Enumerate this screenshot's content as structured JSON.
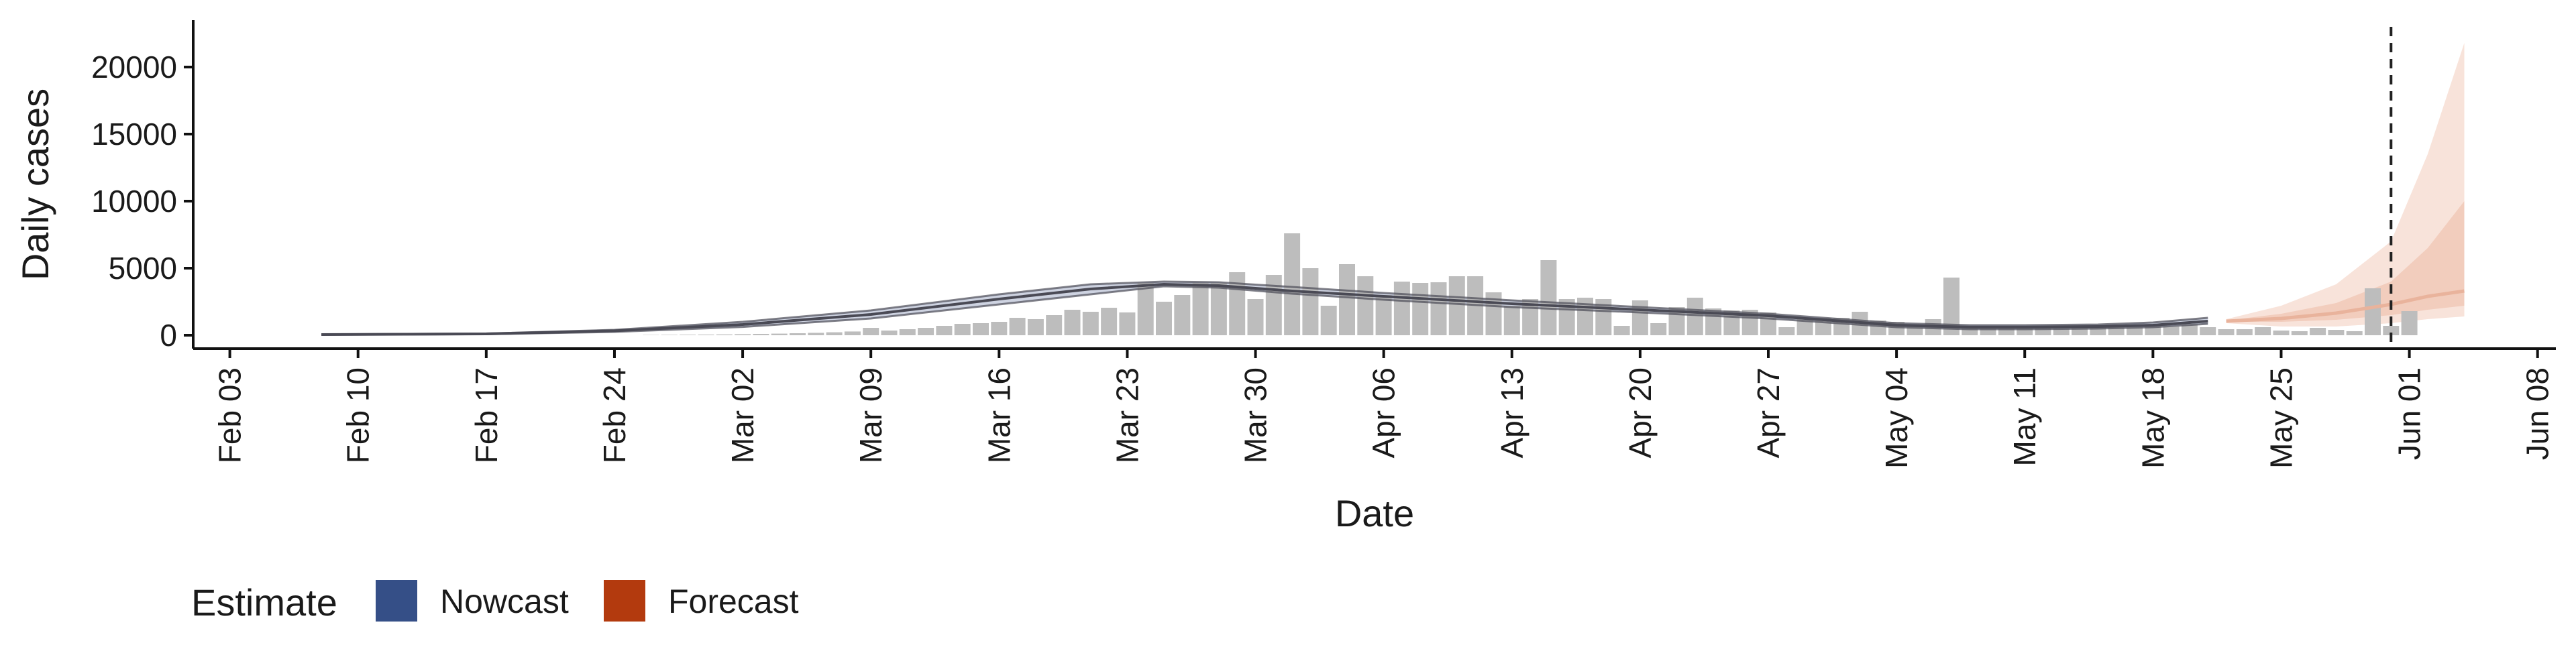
{
  "chart_data": {
    "type": "bar",
    "xlabel": "Date",
    "ylabel": "Daily cases",
    "x_range": [
      "2020-02-01",
      "2020-06-09"
    ],
    "ylim": [
      -1000,
      23500
    ],
    "y_ticks": [
      0,
      5000,
      10000,
      15000,
      20000
    ],
    "y_tick_labels": [
      "0",
      "5000",
      "10000",
      "15000",
      "20000"
    ],
    "x_ticks": [
      "2020-02-03",
      "2020-02-10",
      "2020-02-17",
      "2020-02-24",
      "2020-03-02",
      "2020-03-09",
      "2020-03-16",
      "2020-03-23",
      "2020-03-30",
      "2020-04-06",
      "2020-04-13",
      "2020-04-20",
      "2020-04-27",
      "2020-05-04",
      "2020-05-11",
      "2020-05-18",
      "2020-05-25",
      "2020-06-01",
      "2020-06-08"
    ],
    "x_tick_labels": [
      "Feb 03",
      "Feb 10",
      "Feb 17",
      "Feb 24",
      "Mar 02",
      "Mar 09",
      "Mar 16",
      "Mar 23",
      "Mar 30",
      "Apr 06",
      "Apr 13",
      "Apr 20",
      "Apr 27",
      "May 04",
      "May 11",
      "May 18",
      "May 25",
      "Jun 01",
      "Jun 08"
    ],
    "grid": false,
    "legend_position": "bottom-left",
    "legend": {
      "title": "Estimate",
      "entries": [
        {
          "label": "Nowcast",
          "color": "#354f87"
        },
        {
          "label": "Forecast",
          "color": "#b33a0e"
        }
      ]
    },
    "colors": {
      "bars": "#bdbdbd",
      "nowcast_line": "#4a4a55",
      "nowcast_band": "#c6cbdc",
      "forecast_band_outer": "#f8e3da",
      "forecast_band_mid": "#f2cdbd",
      "forecast_band_inner": "#ebb8a3",
      "forecast_line": "#e9b39c",
      "reference_line": "#222222"
    },
    "reference_line_date": "2020-05-31",
    "bars": [
      {
        "date": "2020-02-26",
        "value": 20
      },
      {
        "date": "2020-02-27",
        "value": 30
      },
      {
        "date": "2020-02-28",
        "value": 40
      },
      {
        "date": "2020-02-29",
        "value": 50
      },
      {
        "date": "2020-03-01",
        "value": 60
      },
      {
        "date": "2020-03-02",
        "value": 80
      },
      {
        "date": "2020-03-03",
        "value": 100
      },
      {
        "date": "2020-03-04",
        "value": 120
      },
      {
        "date": "2020-03-05",
        "value": 150
      },
      {
        "date": "2020-03-06",
        "value": 180
      },
      {
        "date": "2020-03-07",
        "value": 220
      },
      {
        "date": "2020-03-08",
        "value": 280
      },
      {
        "date": "2020-03-09",
        "value": 550
      },
      {
        "date": "2020-03-10",
        "value": 350
      },
      {
        "date": "2020-03-11",
        "value": 450
      },
      {
        "date": "2020-03-12",
        "value": 550
      },
      {
        "date": "2020-03-13",
        "value": 700
      },
      {
        "date": "2020-03-14",
        "value": 850
      },
      {
        "date": "2020-03-15",
        "value": 900
      },
      {
        "date": "2020-03-16",
        "value": 1000
      },
      {
        "date": "2020-03-17",
        "value": 1300
      },
      {
        "date": "2020-03-18",
        "value": 1200
      },
      {
        "date": "2020-03-19",
        "value": 1500
      },
      {
        "date": "2020-03-20",
        "value": 1900
      },
      {
        "date": "2020-03-21",
        "value": 1750
      },
      {
        "date": "2020-03-22",
        "value": 2050
      },
      {
        "date": "2020-03-23",
        "value": 1700
      },
      {
        "date": "2020-03-24",
        "value": 3900
      },
      {
        "date": "2020-03-25",
        "value": 2500
      },
      {
        "date": "2020-03-26",
        "value": 3000
      },
      {
        "date": "2020-03-27",
        "value": 3900
      },
      {
        "date": "2020-03-28",
        "value": 3900
      },
      {
        "date": "2020-03-29",
        "value": 4700
      },
      {
        "date": "2020-03-30",
        "value": 2700
      },
      {
        "date": "2020-03-31",
        "value": 4500
      },
      {
        "date": "2020-04-01",
        "value": 7600
      },
      {
        "date": "2020-04-02",
        "value": 5000
      },
      {
        "date": "2020-04-03",
        "value": 2200
      },
      {
        "date": "2020-04-04",
        "value": 5300
      },
      {
        "date": "2020-04-05",
        "value": 4400
      },
      {
        "date": "2020-04-06",
        "value": 3000
      },
      {
        "date": "2020-04-07",
        "value": 4000
      },
      {
        "date": "2020-04-08",
        "value": 3900
      },
      {
        "date": "2020-04-09",
        "value": 3950
      },
      {
        "date": "2020-04-10",
        "value": 4400
      },
      {
        "date": "2020-04-11",
        "value": 4400
      },
      {
        "date": "2020-04-12",
        "value": 3200
      },
      {
        "date": "2020-04-13",
        "value": 2200
      },
      {
        "date": "2020-04-14",
        "value": 2700
      },
      {
        "date": "2020-04-15",
        "value": 5600
      },
      {
        "date": "2020-04-16",
        "value": 2700
      },
      {
        "date": "2020-04-17",
        "value": 2800
      },
      {
        "date": "2020-04-18",
        "value": 2700
      },
      {
        "date": "2020-04-19",
        "value": 700
      },
      {
        "date": "2020-04-20",
        "value": 2600
      },
      {
        "date": "2020-04-21",
        "value": 900
      },
      {
        "date": "2020-04-22",
        "value": 2100
      },
      {
        "date": "2020-04-23",
        "value": 2800
      },
      {
        "date": "2020-04-24",
        "value": 2000
      },
      {
        "date": "2020-04-25",
        "value": 1850
      },
      {
        "date": "2020-04-26",
        "value": 1900
      },
      {
        "date": "2020-04-27",
        "value": 1700
      },
      {
        "date": "2020-04-28",
        "value": 600
      },
      {
        "date": "2020-04-29",
        "value": 1300
      },
      {
        "date": "2020-04-30",
        "value": 1300
      },
      {
        "date": "2020-05-01",
        "value": 1300
      },
      {
        "date": "2020-05-02",
        "value": 1750
      },
      {
        "date": "2020-05-03",
        "value": 1100
      },
      {
        "date": "2020-05-04",
        "value": 1000
      },
      {
        "date": "2020-05-05",
        "value": 600
      },
      {
        "date": "2020-05-06",
        "value": 1200
      },
      {
        "date": "2020-05-07",
        "value": 4300
      },
      {
        "date": "2020-05-08",
        "value": 500
      },
      {
        "date": "2020-05-09",
        "value": 500
      },
      {
        "date": "2020-05-10",
        "value": 500
      },
      {
        "date": "2020-05-11",
        "value": 650
      },
      {
        "date": "2020-05-12",
        "value": 600
      },
      {
        "date": "2020-05-13",
        "value": 500
      },
      {
        "date": "2020-05-14",
        "value": 650
      },
      {
        "date": "2020-05-15",
        "value": 700
      },
      {
        "date": "2020-05-16",
        "value": 650
      },
      {
        "date": "2020-05-17",
        "value": 600
      },
      {
        "date": "2020-05-18",
        "value": 800
      },
      {
        "date": "2020-05-19",
        "value": 650
      },
      {
        "date": "2020-05-20",
        "value": 800
      },
      {
        "date": "2020-05-21",
        "value": 600
      },
      {
        "date": "2020-05-22",
        "value": 450
      },
      {
        "date": "2020-05-23",
        "value": 450
      },
      {
        "date": "2020-05-24",
        "value": 600
      },
      {
        "date": "2020-05-25",
        "value": 350
      },
      {
        "date": "2020-05-26",
        "value": 300
      },
      {
        "date": "2020-05-27",
        "value": 550
      },
      {
        "date": "2020-05-28",
        "value": 400
      },
      {
        "date": "2020-05-29",
        "value": 300
      },
      {
        "date": "2020-05-30",
        "value": 3500
      },
      {
        "date": "2020-05-31",
        "value": 700
      },
      {
        "date": "2020-06-01",
        "value": 1800
      }
    ],
    "series": [
      {
        "kind": "nowcast",
        "dates": [
          "2020-02-08",
          "2020-02-17",
          "2020-02-24",
          "2020-03-02",
          "2020-03-09",
          "2020-03-16",
          "2020-03-21",
          "2020-03-25",
          "2020-03-28",
          "2020-04-01",
          "2020-04-06",
          "2020-04-13",
          "2020-04-20",
          "2020-04-27",
          "2020-05-04",
          "2020-05-08",
          "2020-05-11",
          "2020-05-15",
          "2020-05-18",
          "2020-05-21"
        ],
        "median": [
          50,
          100,
          330,
          800,
          1550,
          2700,
          3450,
          3800,
          3700,
          3300,
          2900,
          2350,
          1900,
          1450,
          750,
          600,
          600,
          650,
          750,
          1050
        ],
        "lower": [
          40,
          80,
          250,
          620,
          1250,
          2300,
          3050,
          3650,
          3550,
          3100,
          2650,
          2100,
          1700,
          1250,
          600,
          450,
          450,
          500,
          600,
          850
        ],
        "upper": [
          60,
          130,
          400,
          1000,
          1850,
          3050,
          3800,
          4000,
          3950,
          3600,
          3150,
          2600,
          2100,
          1600,
          900,
          750,
          750,
          800,
          950,
          1300
        ]
      },
      {
        "kind": "forecast",
        "dates": [
          "2020-05-22",
          "2020-05-25",
          "2020-05-28",
          "2020-05-31",
          "2020-06-02",
          "2020-06-04"
        ],
        "median": [
          1050,
          1250,
          1650,
          2300,
          2900,
          3300
        ],
        "lower_90": [
          900,
          650,
          650,
          900,
          1200,
          1400
        ],
        "upper_90": [
          1200,
          2200,
          3800,
          7000,
          13500,
          21800
        ],
        "lower_50": [
          1000,
          1000,
          1150,
          1500,
          1900,
          2200
        ],
        "upper_50": [
          1100,
          1600,
          2400,
          4000,
          6500,
          10000
        ]
      }
    ]
  }
}
